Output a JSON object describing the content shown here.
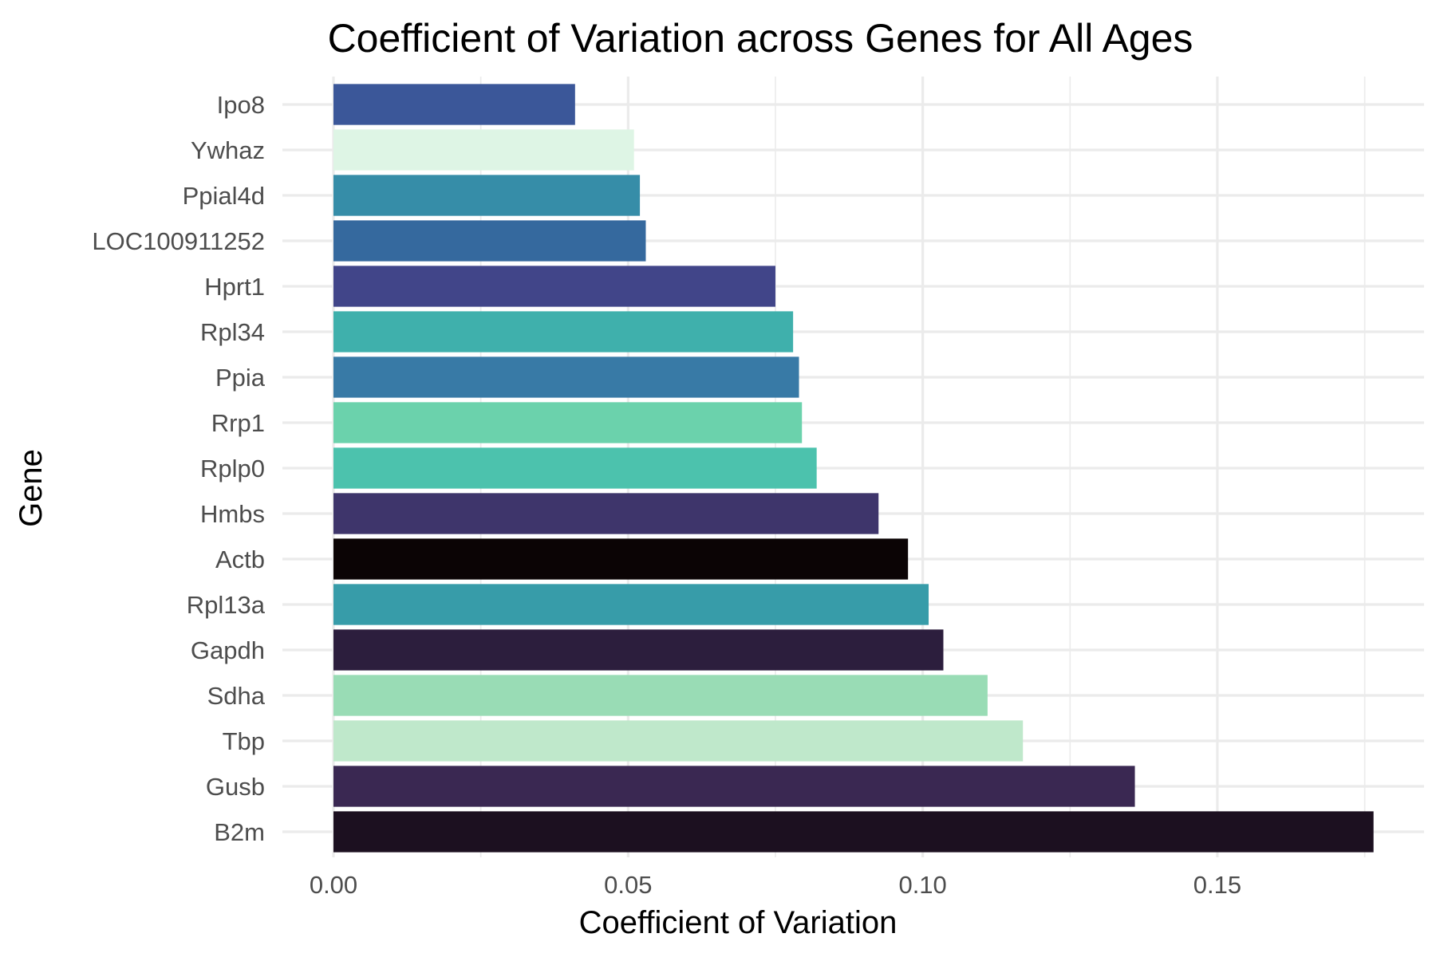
{
  "chart_data": {
    "type": "bar",
    "orientation": "horizontal",
    "title": "Coefficient of Variation across Genes for All Ages",
    "xlabel": "Coefficient of Variation",
    "ylabel": "Gene",
    "xlim": [
      0,
      0.18
    ],
    "x_ticks": [
      0.0,
      0.05,
      0.1,
      0.15
    ],
    "x_tick_labels": [
      "0.00",
      "0.05",
      "0.10",
      "0.15"
    ],
    "grid": true,
    "legend": "none",
    "categories": [
      "Ipo8",
      "Ywhaz",
      "Ppial4d",
      "LOC100911252",
      "Hprt1",
      "Rpl34",
      "Ppia",
      "Rrp1",
      "Rplp0",
      "Hmbs",
      "Actb",
      "Rpl13a",
      "Gapdh",
      "Sdha",
      "Tbp",
      "Gusb",
      "B2m"
    ],
    "values": [
      0.041,
      0.051,
      0.052,
      0.053,
      0.075,
      0.078,
      0.079,
      0.0795,
      0.082,
      0.0925,
      0.0975,
      0.101,
      0.1035,
      0.111,
      0.117,
      0.136,
      0.1765
    ],
    "colors": [
      "#3b5799",
      "#def5e5",
      "#368da8",
      "#35699e",
      "#414589",
      "#3fb0ac",
      "#387aa6",
      "#6bd2ac",
      "#4cc2ad",
      "#3e356b",
      "#0b0405",
      "#379ca9",
      "#2c1e3d",
      "#99dcb5",
      "#bfe8cb",
      "#3a2852",
      "#1c1020"
    ]
  }
}
